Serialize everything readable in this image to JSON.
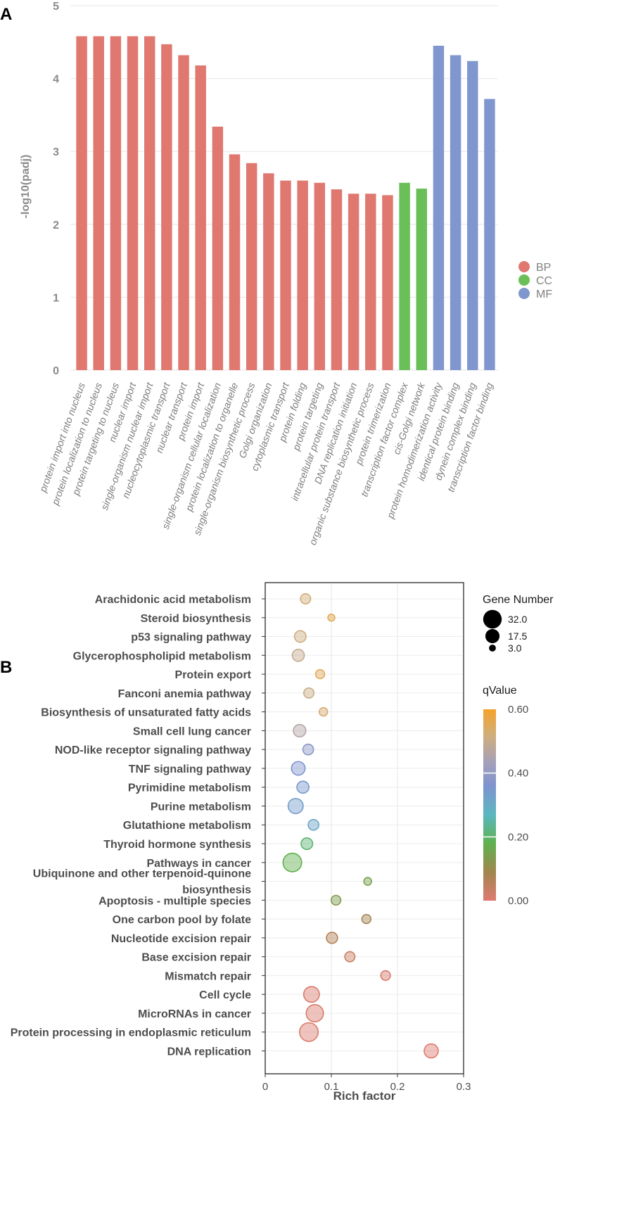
{
  "panelA": {
    "label": "A",
    "chart_data": {
      "type": "bar",
      "ylabel": "-log10(padj)",
      "ylim": [
        0,
        5
      ],
      "yticks": [
        0,
        1,
        2,
        3,
        4,
        5
      ],
      "categories": [
        "protein import into nucleus",
        "protein localization to nucleus",
        "protein targeting to nucleus",
        "nuclear import",
        "single-organism nuclear import",
        "nucleocytoplasmic transport",
        "nuclear transport",
        "protein import",
        "single-organism cellular localization",
        "protein localization to organelle",
        "single-organism biosynthetic process",
        "Golgi organization",
        "cytoplasmic transport",
        "protein folding",
        "protein targeting",
        "intracellular protein transport",
        "DNA replication initiation",
        "organic substance biosynthetic process",
        "protein trimerization",
        "transcription factor complex",
        "cis-Golgi network",
        "protein homodimerization activity",
        "identical protein binding",
        "dynein complex binding",
        "transcription factor binding"
      ],
      "values": [
        4.58,
        4.58,
        4.58,
        4.58,
        4.58,
        4.47,
        4.32,
        4.18,
        3.34,
        2.96,
        2.84,
        2.7,
        2.6,
        2.6,
        2.57,
        2.48,
        2.42,
        2.42,
        2.4,
        2.57,
        2.49,
        4.45,
        4.32,
        4.24,
        3.72
      ],
      "groups": [
        "BP",
        "BP",
        "BP",
        "BP",
        "BP",
        "BP",
        "BP",
        "BP",
        "BP",
        "BP",
        "BP",
        "BP",
        "BP",
        "BP",
        "BP",
        "BP",
        "BP",
        "BP",
        "BP",
        "CC",
        "CC",
        "MF",
        "MF",
        "MF",
        "MF"
      ],
      "legend": [
        {
          "name": "BP",
          "color": "#e07870"
        },
        {
          "name": "CC",
          "color": "#6bbf59"
        },
        {
          "name": "MF",
          "color": "#7f96cf"
        }
      ]
    }
  },
  "panelB": {
    "label": "B",
    "chart_data": {
      "type": "scatter",
      "xlabel": "Rich factor",
      "xlim": [
        0,
        0.3
      ],
      "xticks": [
        "0",
        "0.1",
        "0.2",
        "0.3"
      ],
      "pathways": [
        {
          "name": "Arachidonic acid metabolism",
          "rich": 0.061,
          "genes": 8,
          "q": 0.52
        },
        {
          "name": "Steroid biosynthesis",
          "rich": 0.1,
          "genes": 3,
          "q": 0.56
        },
        {
          "name": "p53 signaling pathway",
          "rich": 0.053,
          "genes": 11,
          "q": 0.51
        },
        {
          "name": "Glycerophospholipid metabolism",
          "rich": 0.05,
          "genes": 12,
          "q": 0.49
        },
        {
          "name": "Protein export",
          "rich": 0.083,
          "genes": 6,
          "q": 0.55
        },
        {
          "name": "Fanconi anemia pathway",
          "rich": 0.066,
          "genes": 8,
          "q": 0.5
        },
        {
          "name": "Biosynthesis of unsaturated fatty acids",
          "rich": 0.088,
          "genes": 5,
          "q": 0.53
        },
        {
          "name": "Small cell lung cancer",
          "rich": 0.052,
          "genes": 13,
          "q": 0.46
        },
        {
          "name": "NOD-like receptor signaling pathway",
          "rich": 0.065,
          "genes": 9,
          "q": 0.37
        },
        {
          "name": "TNF signaling pathway",
          "rich": 0.05,
          "genes": 16,
          "q": 0.34
        },
        {
          "name": "Pyrimidine metabolism",
          "rich": 0.057,
          "genes": 12,
          "q": 0.33
        },
        {
          "name": "Purine metabolism",
          "rich": 0.046,
          "genes": 20,
          "q": 0.32
        },
        {
          "name": "Glutathione metabolism",
          "rich": 0.073,
          "genes": 9,
          "q": 0.3
        },
        {
          "name": "Thyroid hormone synthesis",
          "rich": 0.063,
          "genes": 11,
          "q": 0.2
        },
        {
          "name": "Pathways in cancer",
          "rich": 0.041,
          "genes": 32,
          "q": 0.17
        },
        {
          "name": "Ubiquinone and other terpenoid-quinone biosynthesis",
          "rich": 0.155,
          "genes": 4,
          "q": 0.14
        },
        {
          "name": "Apoptosis - multiple species",
          "rich": 0.107,
          "genes": 7,
          "q": 0.13
        },
        {
          "name": "One carbon pool by folate",
          "rich": 0.153,
          "genes": 6,
          "q": 0.08
        },
        {
          "name": "Nucleotide excision repair",
          "rich": 0.101,
          "genes": 10,
          "q": 0.06
        },
        {
          "name": "Base excision repair",
          "rich": 0.128,
          "genes": 8,
          "q": 0.03
        },
        {
          "name": "Mismatch repair",
          "rich": 0.182,
          "genes": 7,
          "q": 0.01
        },
        {
          "name": "Cell cycle",
          "rich": 0.07,
          "genes": 22,
          "q": 0.01
        },
        {
          "name": "MicroRNAs in cancer",
          "rich": 0.075,
          "genes": 27,
          "q": 0.01
        },
        {
          "name": "Protein processing in endoplasmic reticulum",
          "rich": 0.066,
          "genes": 32,
          "q": 0.005
        },
        {
          "name": "DNA replication",
          "rich": 0.251,
          "genes": 17,
          "q": 0.003
        }
      ],
      "size_legend": {
        "title": "Gene Number",
        "values": [
          "32.0",
          "17.5",
          "3.0"
        ]
      },
      "color_legend": {
        "title": "qValue",
        "ticks": [
          "0.60",
          "0.40",
          "0.20",
          "0.00"
        ],
        "colors": [
          "#e07a70",
          "#a0864e",
          "#5fb14e",
          "#5bb7c0",
          "#7f93cf",
          "#a4a0ba",
          "#cfae7e",
          "#f5a32a"
        ]
      }
    }
  }
}
